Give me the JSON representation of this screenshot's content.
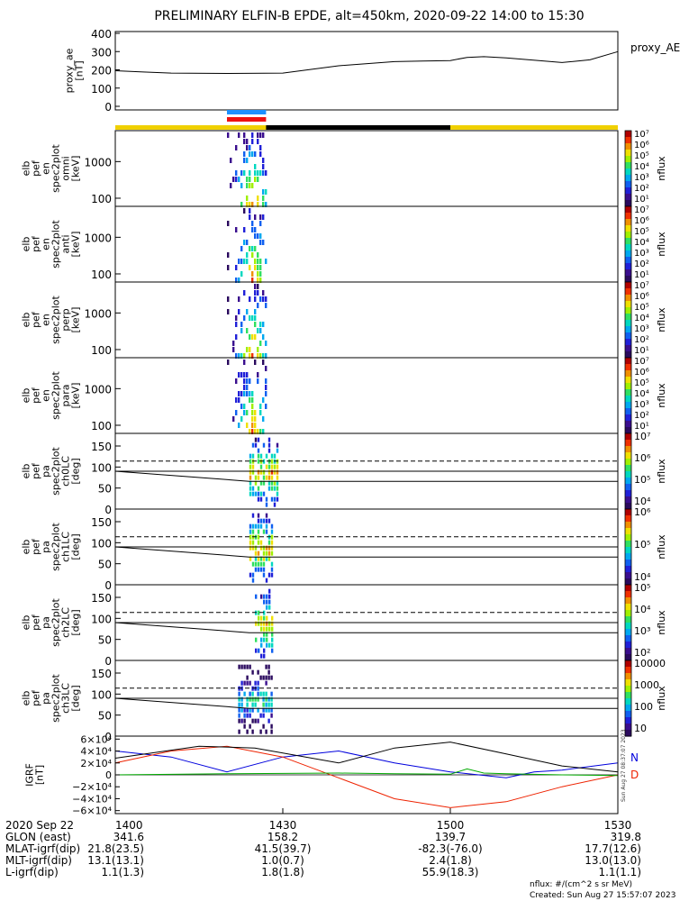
{
  "title": "PRELIMINARY ELFIN-B EPDE, alt=450km, 2020-09-22 14:00 to 15:30",
  "colors": {
    "fgm_n": "#0000dd",
    "fgm_d": "#ee2200",
    "fgm_e": "#00aa00",
    "bar_yellow": "#f0d000",
    "bar_black": "#000000",
    "bar_blue": "#1e90ff",
    "bar_red": "#ee1111"
  },
  "chart_data": [
    {
      "id": "proxy_ae",
      "type": "line",
      "ylabel_lines": [
        "proxy_ae",
        "[nT]"
      ],
      "ylim": [
        0,
        400
      ],
      "yticks": [
        "400",
        "300",
        "200",
        "100",
        "0"
      ],
      "legend": "proxy_AE",
      "x_minutes": [
        0,
        5,
        10,
        20,
        30,
        40,
        50,
        55,
        60,
        63,
        66,
        70,
        80,
        85,
        90
      ],
      "y": [
        195,
        188,
        182,
        180,
        182,
        222,
        245,
        248,
        251,
        268,
        272,
        265,
        240,
        255,
        300
      ]
    },
    {
      "id": "state_bars",
      "type": "bar",
      "segments": [
        {
          "color": "yellow",
          "from": 0,
          "to": 60
        },
        {
          "color": "black",
          "from": 27,
          "to": 60
        },
        {
          "color": "yellow",
          "from": 60,
          "to": 90
        }
      ],
      "markers": [
        {
          "color": "blue",
          "from": 20,
          "to": 27
        },
        {
          "color": "red",
          "from": 20,
          "to": 27
        }
      ]
    },
    {
      "id": "spec_omni",
      "type": "heatmap",
      "ylabel_lines": [
        "elb",
        "pef",
        "en",
        "spec2plot",
        "omni",
        "[keV]"
      ],
      "ylog": true,
      "ylim": [
        60,
        7000
      ],
      "yticks": [
        "1000",
        "100"
      ],
      "colorbar": {
        "label": "nflux",
        "scale": "log",
        "range": [
          "10^1",
          "10^7"
        ],
        "ticks": [
          "10^7",
          "10^6",
          "10^5",
          "10^4",
          "10^3",
          "10^2",
          "10^1"
        ]
      },
      "x_minutes_range": [
        20,
        27
      ]
    },
    {
      "id": "spec_anti",
      "type": "heatmap",
      "ylabel_lines": [
        "elb",
        "pef",
        "en",
        "spec2plot",
        "anti",
        "[keV]"
      ],
      "ylog": true,
      "ylim": [
        60,
        7000
      ],
      "yticks": [
        "1000",
        "100"
      ],
      "colorbar": {
        "label": "nflux",
        "scale": "log",
        "range": [
          "10^1",
          "10^7"
        ],
        "ticks": [
          "10^7",
          "10^6",
          "10^5",
          "10^4",
          "10^3",
          "10^2",
          "10^1"
        ]
      },
      "x_minutes_range": [
        20,
        27
      ]
    },
    {
      "id": "spec_perp",
      "type": "heatmap",
      "ylabel_lines": [
        "elb",
        "pef",
        "en",
        "spec2plot",
        "perp",
        "[keV]"
      ],
      "ylog": true,
      "ylim": [
        60,
        7000
      ],
      "yticks": [
        "1000",
        "100"
      ],
      "colorbar": {
        "label": "nflux",
        "scale": "log",
        "range": [
          "10^1",
          "10^7"
        ],
        "ticks": [
          "10^7",
          "10^6",
          "10^5",
          "10^4",
          "10^3",
          "10^2",
          "10^1"
        ]
      },
      "x_minutes_range": [
        20,
        27
      ]
    },
    {
      "id": "spec_para",
      "type": "heatmap",
      "ylabel_lines": [
        "elb",
        "pef",
        "en",
        "spec2plot",
        "para",
        "[keV]"
      ],
      "ylog": true,
      "ylim": [
        60,
        7000
      ],
      "yticks": [
        "1000",
        "100"
      ],
      "colorbar": {
        "label": "nflux",
        "scale": "log",
        "range": [
          "10^1",
          "10^7"
        ],
        "ticks": [
          "10^7",
          "10^6",
          "10^5",
          "10^4",
          "10^3",
          "10^2",
          "10^1"
        ]
      },
      "x_minutes_range": [
        20,
        27
      ]
    },
    {
      "id": "pa_ch0",
      "type": "heatmap",
      "ylabel_lines": [
        "elb",
        "pef",
        "pa",
        "spec2plot",
        "ch0LC",
        "[deg]"
      ],
      "ylim": [
        0,
        180
      ],
      "yticks": [
        "150",
        "100",
        "50",
        "0"
      ],
      "colorbar": {
        "label": "nflux",
        "scale": "log",
        "range": [
          "10^3.3",
          "10^7"
        ],
        "ticks": [
          "10^7",
          "10^6",
          "10^5",
          "10^4"
        ]
      },
      "x_minutes_range": [
        24,
        29
      ]
    },
    {
      "id": "pa_ch1",
      "type": "heatmap",
      "ylabel_lines": [
        "elb",
        "pef",
        "pa",
        "spec2plot",
        "ch1LC",
        "[deg]"
      ],
      "ylim": [
        0,
        180
      ],
      "yticks": [
        "150",
        "100",
        "50",
        "0"
      ],
      "colorbar": {
        "label": "nflux",
        "scale": "log",
        "range": [
          "10^3.3",
          "10^6.4"
        ],
        "ticks": [
          "10^6",
          "10^5",
          "10^4"
        ]
      },
      "x_minutes_range": [
        24,
        28
      ]
    },
    {
      "id": "pa_ch2",
      "type": "heatmap",
      "ylabel_lines": [
        "elb",
        "pef",
        "pa",
        "spec2plot",
        "ch2LC",
        "[deg]"
      ],
      "ylim": [
        0,
        180
      ],
      "yticks": [
        "150",
        "100",
        "50",
        "0"
      ],
      "colorbar": {
        "label": "nflux",
        "scale": "log",
        "range": [
          "10^1.7",
          "10^5.8"
        ],
        "ticks": [
          "10^5",
          "10^4",
          "10^3",
          "10^2"
        ]
      },
      "x_minutes_range": [
        25,
        28
      ]
    },
    {
      "id": "pa_ch3",
      "type": "heatmap",
      "ylabel_lines": [
        "elb",
        "pef",
        "pa",
        "spec2plot",
        "ch3LC",
        "[deg]"
      ],
      "ylim": [
        0,
        180
      ],
      "yticks": [
        "150",
        "100",
        "50",
        "0"
      ],
      "colorbar": {
        "label": "nflux",
        "scale": "log",
        "range": [
          "10",
          "10000"
        ],
        "ticks": [
          "10000",
          "1000",
          "100",
          "10"
        ]
      },
      "x_minutes_range": [
        22,
        28
      ]
    },
    {
      "id": "fgm",
      "type": "line",
      "ylabel_lines": [
        "IGRF",
        "[nT]"
      ],
      "ylim": [
        -65000,
        65000
      ],
      "yticks": [
        "6×10⁴",
        "4×10⁴",
        "2×10⁴",
        "0",
        "−2×10⁴",
        "−4×10⁴",
        "−6×10⁴"
      ],
      "legend": [
        "N",
        "D"
      ],
      "series": [
        {
          "name": "N",
          "color_key": "fgm_n",
          "x": [
            0,
            10,
            20,
            30,
            40,
            50,
            60,
            70,
            75,
            80,
            90
          ],
          "y": [
            40000,
            30000,
            5000,
            30000,
            40000,
            20000,
            5000,
            -5000,
            5000,
            8000,
            20000
          ]
        },
        {
          "name": "D",
          "color_key": "fgm_d",
          "x": [
            0,
            10,
            20,
            30,
            40,
            50,
            60,
            70,
            80,
            90
          ],
          "y": [
            20000,
            40000,
            48000,
            30000,
            -5000,
            -40000,
            -55000,
            -45000,
            -20000,
            0
          ]
        },
        {
          "name": "",
          "color_key": "fgm_e",
          "x": [
            0,
            20,
            40,
            50,
            60,
            63,
            66,
            70,
            80,
            90
          ],
          "y": [
            0,
            2000,
            3000,
            2000,
            1000,
            10000,
            3000,
            2000,
            0,
            -1000
          ]
        },
        {
          "name": "",
          "color_key": "bar_black",
          "x": [
            0,
            15,
            25,
            40,
            50,
            60,
            70,
            80,
            90
          ],
          "y": [
            28000,
            48000,
            45000,
            20000,
            45000,
            55000,
            35000,
            15000,
            5000
          ]
        }
      ]
    }
  ],
  "footer": {
    "row_labels": [
      "2020 Sep 22",
      "GLON (east)",
      "MLAT-igrf(dip)",
      "MLT-igrf(dip)",
      "L-igrf(dip)"
    ],
    "time_ticks": [
      "1400",
      "1430",
      "1500",
      "1530"
    ],
    "columns": [
      [
        "341.6",
        "21.8(23.5)",
        "13.1(13.1)",
        "1.1(1.3)"
      ],
      [
        "158.2",
        "41.5(39.7)",
        "1.0(0.7)",
        "1.8(1.8)"
      ],
      [
        "139.7",
        "-82.3(-76.0)",
        "2.4(1.8)",
        "55.9(18.3)"
      ],
      [
        "319.8",
        "17.7(12.6)",
        "13.0(13.0)",
        "1.1(1.1)"
      ]
    ],
    "note_units": "nflux: #/(cm^2 s sr MeV)",
    "note_created": "Created: Sun Aug 27 15:57:07 2023",
    "side_stamp": "Sun Aug 27 08:37:07 2023"
  }
}
